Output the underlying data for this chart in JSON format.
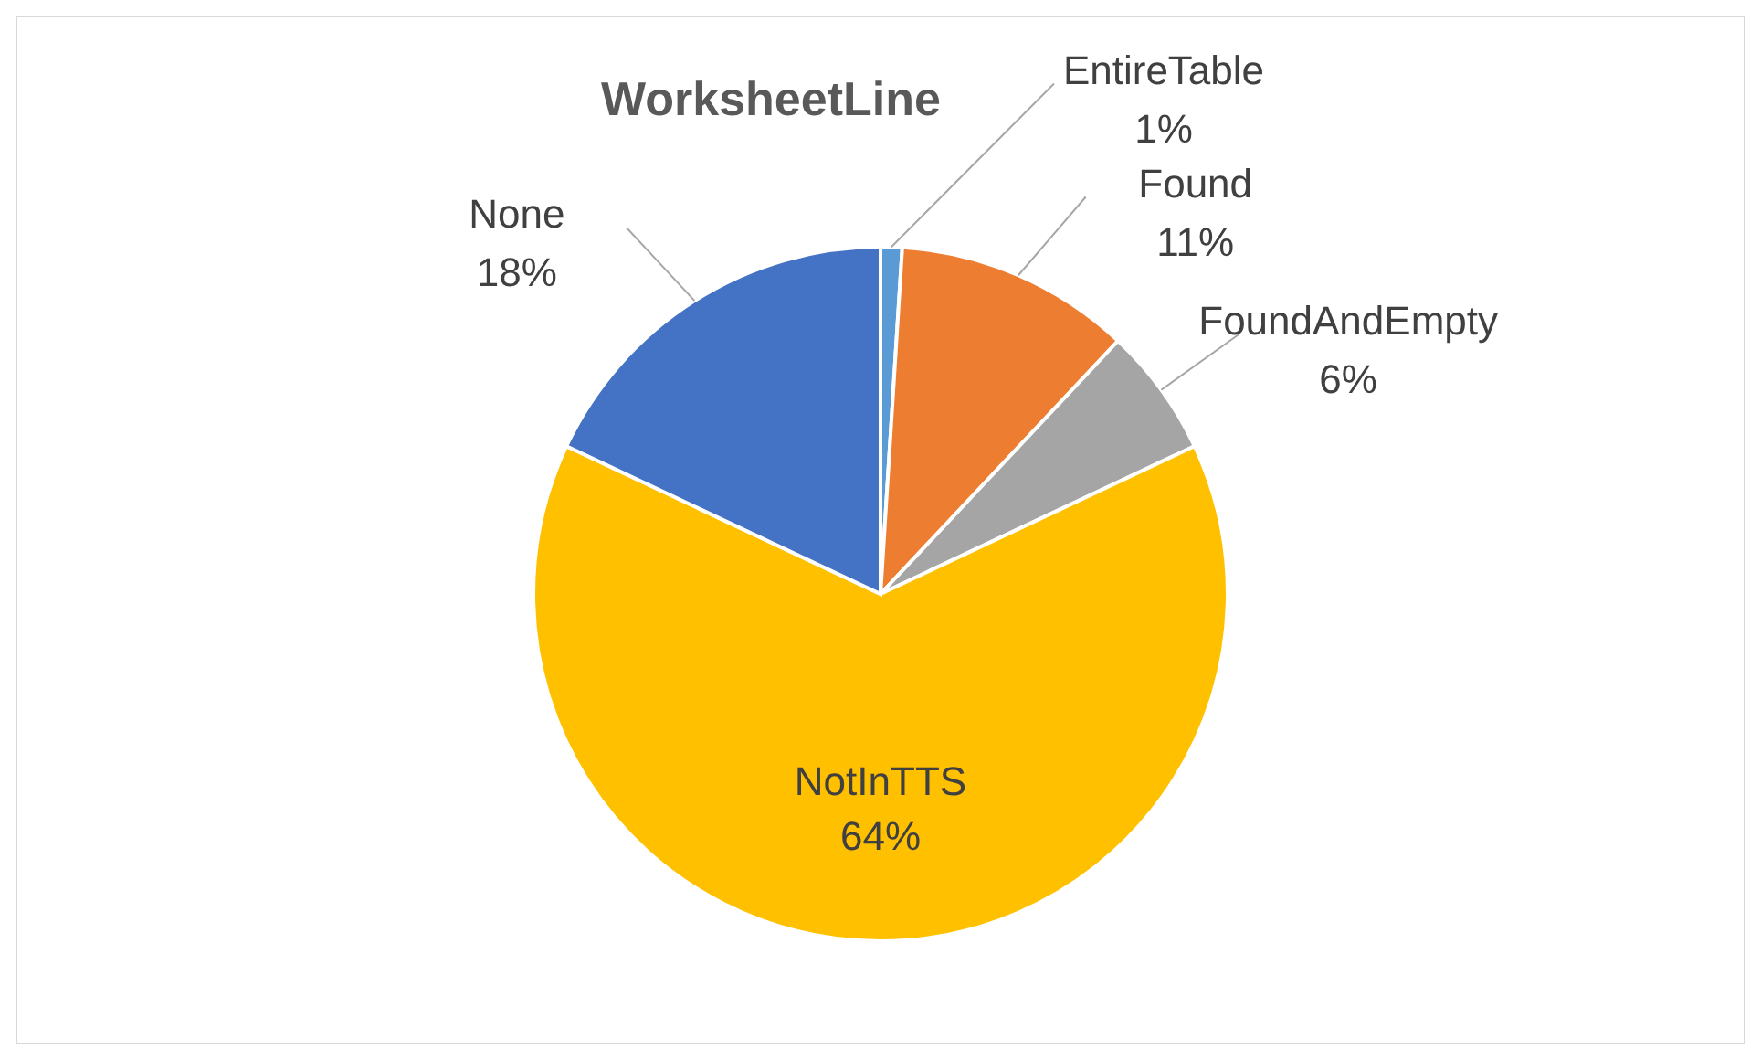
{
  "chart_data": {
    "type": "pie",
    "title": "WorksheetLine",
    "categories": [
      "EntireTable",
      "Found",
      "FoundAndEmpty",
      "NotInTTS",
      "None"
    ],
    "values": [
      1,
      11,
      6,
      64,
      18
    ],
    "colors": [
      "#5b9bd5",
      "#ed7d31",
      "#a5a5a5",
      "#ffc000",
      "#4472c4"
    ],
    "value_labels": [
      "1%",
      "11%",
      "6%",
      "64%",
      "18%"
    ]
  }
}
